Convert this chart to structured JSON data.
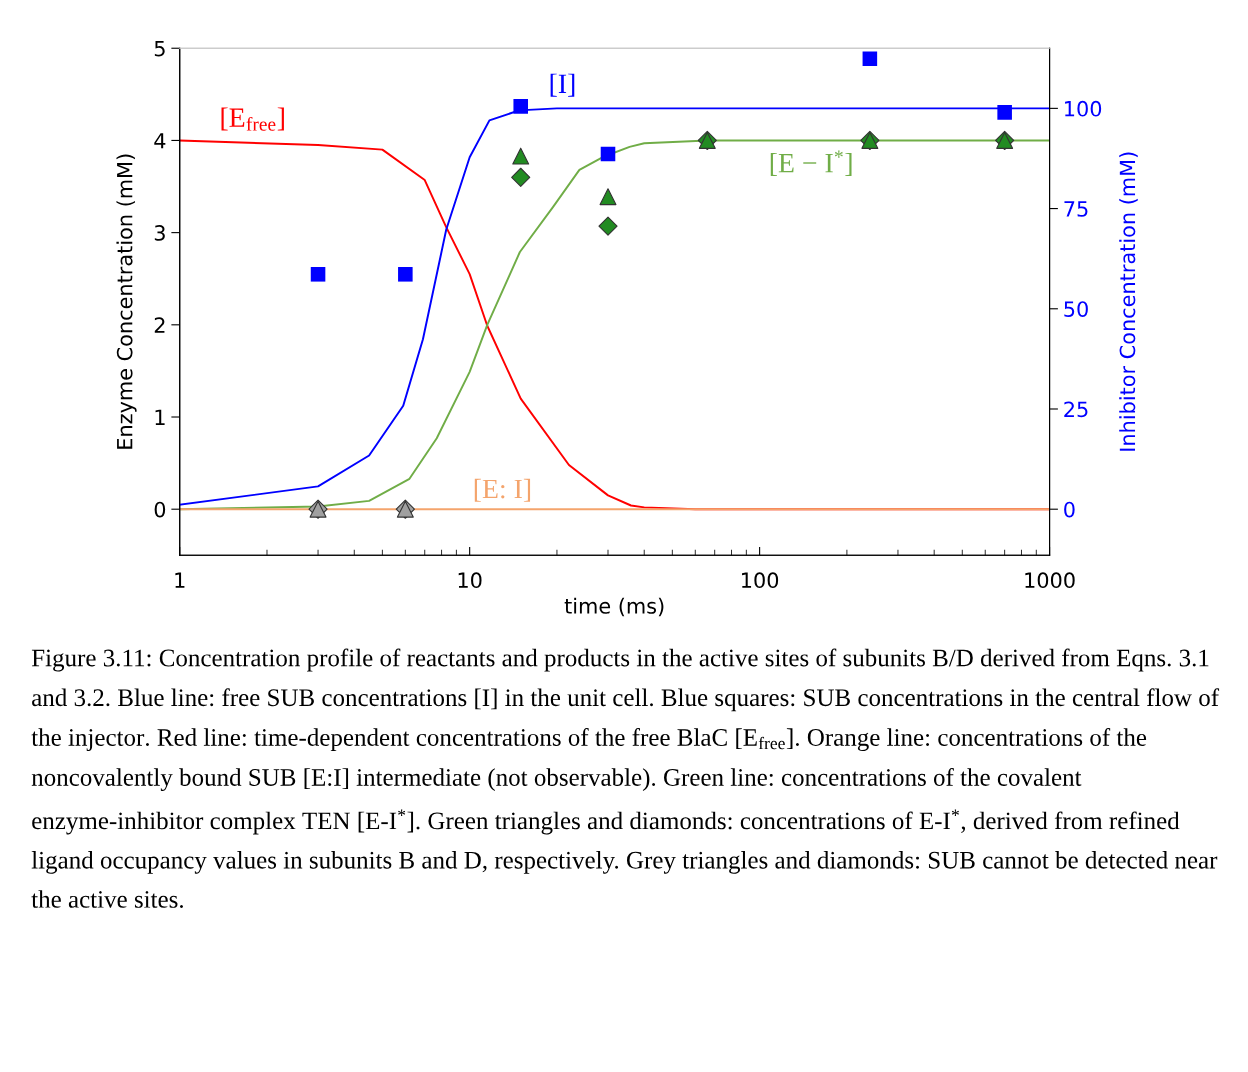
{
  "chart_data": {
    "type": "line",
    "xlabel": "time (ms)",
    "ylabel": "Enzyme Concentration (mM)",
    "y2label": "Inhibitor Concentration (mM)",
    "log": "x",
    "xlim": [
      1,
      1000
    ],
    "xticks": [
      1,
      10,
      100,
      1000
    ],
    "ylim": [
      -0.5,
      5
    ],
    "yticks": [
      0,
      1,
      2,
      3,
      4,
      5
    ],
    "y2lim": [
      -11.5,
      115
    ],
    "y2ticks": [
      0,
      25,
      50,
      75,
      100
    ],
    "grid": false,
    "legend": false,
    "series": [
      {
        "name": "[E$_{free}$]",
        "color": "#ff0000",
        "x": [
          1,
          3,
          5,
          7,
          8.3,
          10,
          11.5,
          15,
          22,
          30,
          36,
          40,
          60,
          1000
        ],
        "values": [
          4.0,
          3.95,
          3.9,
          3.57,
          3.06,
          2.55,
          1.99,
          1.2,
          0.48,
          0.15,
          0.04,
          0.02,
          0.0,
          0.0
        ]
      },
      {
        "name": "[I]",
        "color": "#0000ff",
        "axis": "y2",
        "x": [
          1,
          3,
          4.5,
          5.9,
          6.9,
          8.3,
          10,
          11.7,
          14.8,
          20,
          1000
        ],
        "values": [
          1.1,
          5.7,
          13.4,
          25.8,
          42.4,
          69.7,
          87.8,
          97,
          99.5,
          100,
          100
        ]
      },
      {
        "name": "[E − I$^{*}$]",
        "color": "#70ad47",
        "x": [
          1,
          3,
          4.5,
          6.2,
          7.7,
          10,
          11.5,
          14.9,
          19.4,
          23.9,
          28.8,
          35.6,
          40,
          66,
          1000
        ],
        "values": [
          0.0,
          0.03,
          0.09,
          0.33,
          0.77,
          1.49,
          2.0,
          2.79,
          3.28,
          3.68,
          3.82,
          3.93,
          3.97,
          4.0,
          4.0
        ]
      },
      {
        "name": "[E: I]",
        "color": "#f4a46c",
        "x": [
          1,
          1000
        ],
        "values": [
          0.0,
          0.0
        ]
      },
      {
        "type": "scatter",
        "color": "#0000ff",
        "axis": "y2",
        "marker": "square",
        "x": [
          3,
          6,
          15,
          30,
          240,
          700
        ],
        "values": [
          58.6,
          58.6,
          100.5,
          88.6,
          112.4,
          99
        ]
      },
      {
        "type": "scatter",
        "color": "#a0a0a0",
        "marker": "diamond",
        "x": [
          3,
          6
        ],
        "values": [
          0,
          0
        ]
      },
      {
        "type": "scatter",
        "color": "#a0a0a0",
        "marker": "triangle",
        "x": [
          3,
          6
        ],
        "values": [
          0,
          0
        ]
      },
      {
        "type": "scatter",
        "color": "#228b22",
        "marker": "diamond",
        "x": [
          15,
          30,
          66,
          240,
          700
        ],
        "values": [
          3.6,
          3.07,
          4.0,
          4.0,
          4.0
        ]
      },
      {
        "type": "scatter",
        "color": "#228b22",
        "marker": "triangle",
        "x": [
          15,
          30,
          66,
          240,
          700
        ],
        "values": [
          3.83,
          3.39,
          4.0,
          4.0,
          4.0
        ]
      }
    ],
    "annotations": [
      "Figure 3.11: Concentration profile of reactants and products in the active sites of subunits B/D derived from Eqns. 3.1 and 3.2. Blue line: free SUB concentrations [I] in the unit cell. Blue squares: SUB concentrations in the central flow of the injector. Red line: time-dependent concentrations of the free BlaC [E$_{free}$]. Orange line: concentrations of the noncovalently bound SUB [E:I] intermediate (not observable). Green line: concentrations of the covalent enzyme-inhibitor complex TEN [E-I$^{*}$]. Green triangles and diamonds: concentrations of E-I$^{*}$, derived from refined ligand occupancy values in subunits B and D, respectively. Grey triangles and diamonds: SUB cannot be detected near the active sites."
    ]
  }
}
